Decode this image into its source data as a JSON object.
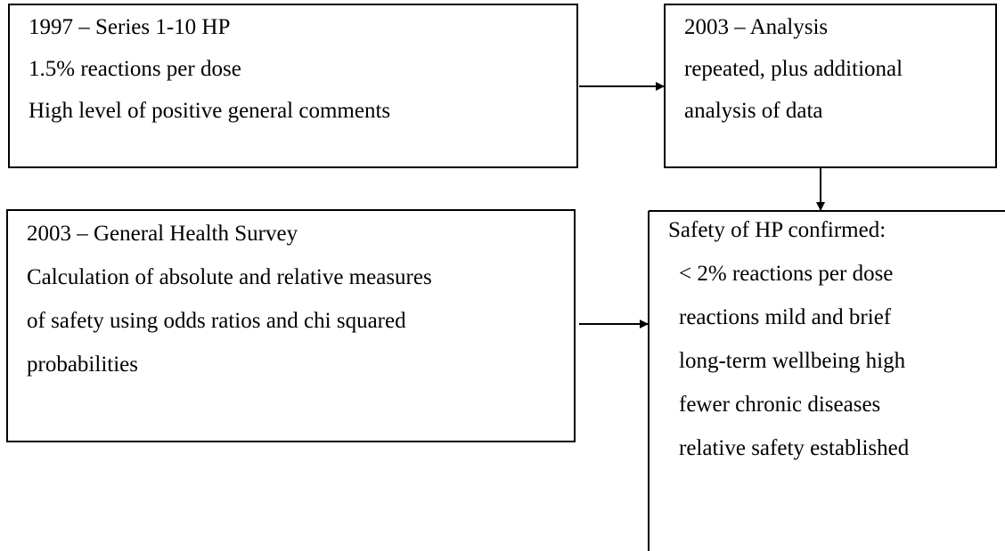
{
  "nodes": [
    {
      "lines": [
        "1997 – Series 1-10 HP",
        "1.5% reactions per dose",
        "High level of positive general comments"
      ]
    },
    {
      "lines": [
        "2003 – Analysis",
        "repeated, plus additional",
        "analysis of data"
      ]
    },
    {
      "lines": [
        "2003 – General Health Survey",
        "Calculation of absolute and relative measures",
        "of safety using odds ratios and chi squared",
        "probabilities"
      ]
    },
    {
      "lines": [
        "Safety of HP confirmed:",
        "< 2% reactions per dose",
        "reactions mild and brief",
        "long-term wellbeing high",
        "fewer chronic diseases",
        "relative safety established"
      ]
    }
  ]
}
